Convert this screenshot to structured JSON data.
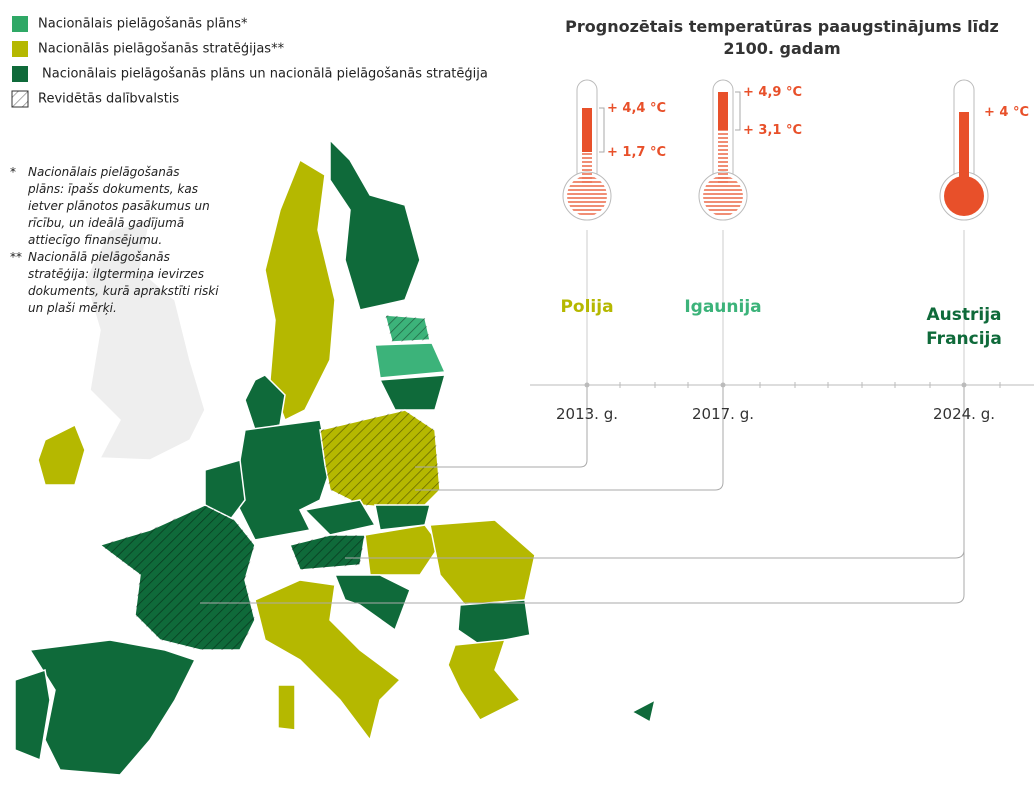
{
  "legend": [
    {
      "label": "Nacionālais pielāgošanās plāns*",
      "color": "#2fa866"
    },
    {
      "label": "Nacionālās pielāgošanās stratēģijas**",
      "color": "#b5b800"
    },
    {
      "label": "Nacionālais pielāgošanās plāns un nacionālā pielāgošanās stratēģija",
      "color": "#0f6a3a"
    },
    {
      "label": "Revidētās dalībvalstis",
      "color": "#ffffff"
    }
  ],
  "notes": [
    {
      "mark": "*",
      "text": [
        "Nacionālais pielāgošanās",
        "plāns: īpašs dokuments, kas",
        "ietver plānotos pasākumus un",
        "rīcību, un ideālā gadījumā",
        "attiecīgo finansējumu."
      ]
    },
    {
      "mark": "**",
      "text": [
        "Nacionālā pielāgošanās",
        "stratēģija: ilgtermiņa ievirzes",
        "dokuments, kurā aprakstīti riski",
        "un plaši mērķi."
      ]
    }
  ],
  "timeline": {
    "title": [
      "Prognozētais temperatūras paaugstinājums līdz",
      "2100. gadam"
    ],
    "entries": [
      {
        "year": "2013. g.",
        "countries": [
          "Polija"
        ],
        "color": "#b5b800",
        "temps": [
          "+ 4,4 °C",
          "+ 1,7 °C"
        ]
      },
      {
        "year": "2017. g.",
        "countries": [
          "Igaunija"
        ],
        "color": "#3cb37a",
        "temps": [
          "+ 4,9 °C",
          "+ 3,1 °C"
        ]
      },
      {
        "year": "2024. g.",
        "countries": [
          "Austrija",
          "Francija"
        ],
        "color": "#0f6a3a",
        "temps": [
          "+ 4 °C"
        ]
      }
    ]
  }
}
